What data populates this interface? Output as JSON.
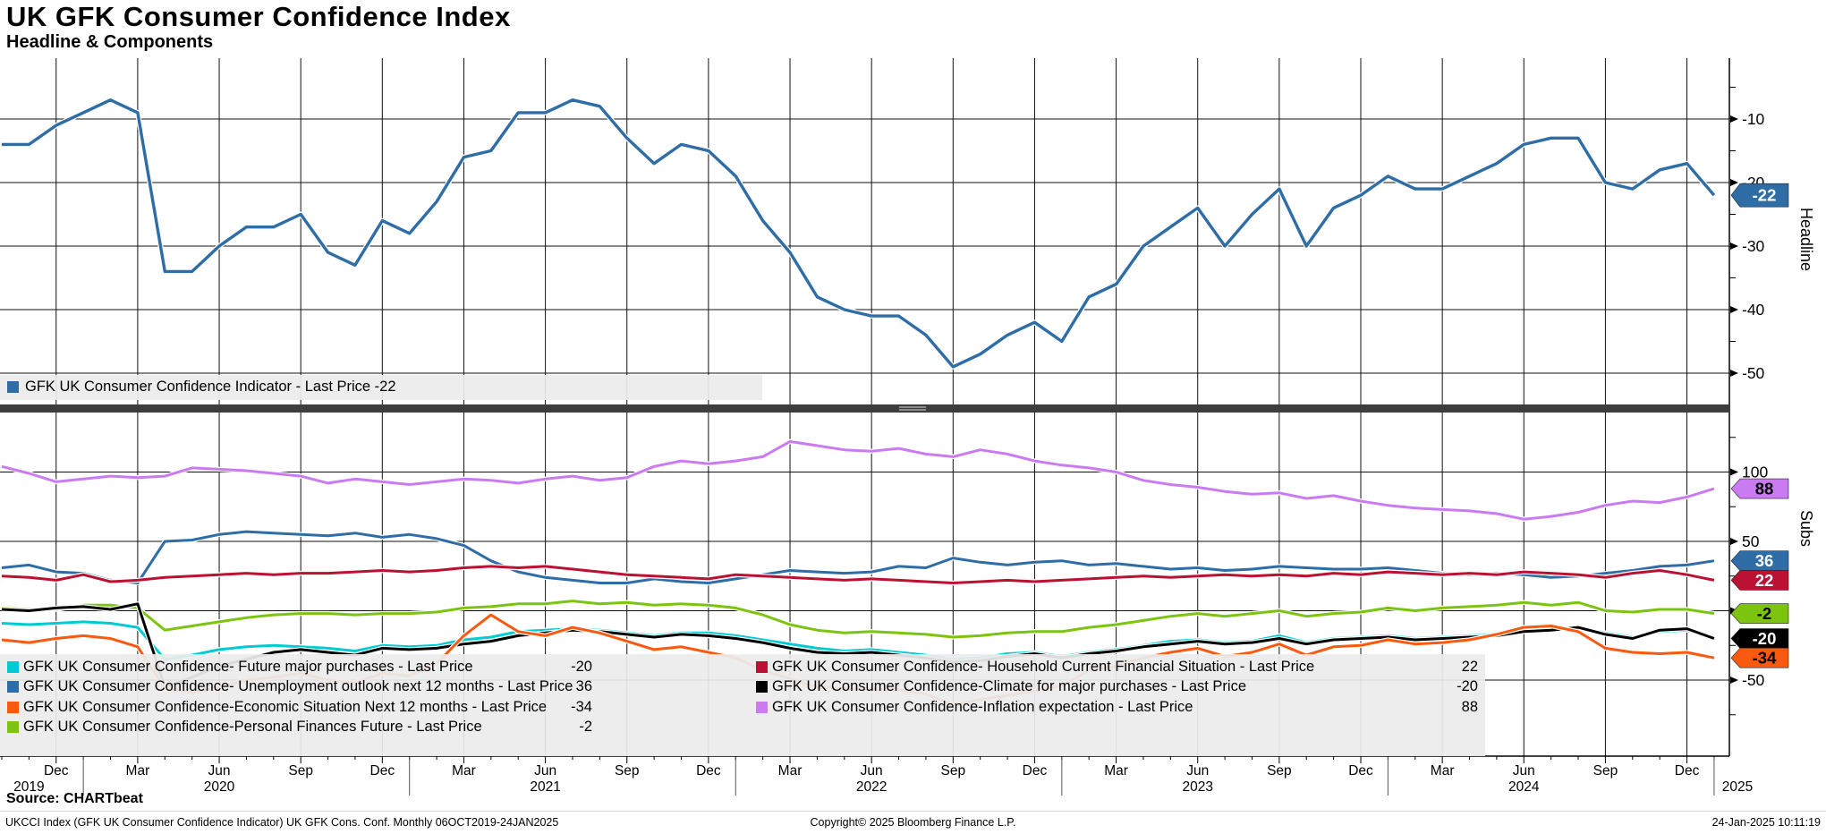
{
  "header": {
    "title": "UK GFK Consumer Confidence Index",
    "subtitle": "Headline & Components"
  },
  "top_panel": {
    "axis_label": "Headline",
    "legend": {
      "label": "GFK UK Consumer Confidence Indicator - Last Price -22",
      "color": "#2e6da6"
    },
    "y_ticks": [
      -10,
      -20,
      -30,
      -40,
      -50
    ],
    "minor_ticks": [
      -5,
      -15,
      -25,
      -35,
      -45
    ],
    "tag": {
      "display": "-22",
      "value": -22,
      "bg": "#2e6da6",
      "fg": "#ffffff"
    }
  },
  "bottom_panel": {
    "axis_label": "Subs",
    "y_ticks": [
      100,
      50,
      0,
      -50
    ],
    "minor_ticks": [
      125,
      75,
      25,
      -25,
      -75
    ],
    "legend_col1": [
      {
        "label": "GFK UK Consumer Confidence- Future major purchases - Last Price",
        "value": "-20",
        "color": "#00cbd2"
      },
      {
        "label": "GFK UK Consumer Confidence- Unemployment outlook next 12 months - Last Price",
        "value": "36",
        "color": "#2e6da6"
      },
      {
        "label": "GFK UK Consumer Confidence-Economic Situation Next 12 months - Last Price",
        "value": "-34",
        "color": "#fa5910"
      },
      {
        "label": "GFK UK Consumer Confidence-Personal Finances Future - Last Price",
        "value": "-2",
        "color": "#7cc40f"
      }
    ],
    "legend_col2": [
      {
        "label": "GFK UK Consumer Confidence- Household Current Financial Situation - Last Price",
        "value": "22",
        "color": "#bb1133"
      },
      {
        "label": "GFK UK Consumer Confidence-Climate for major purchases - Last Price",
        "value": "-20",
        "color": "#000000"
      },
      {
        "label": "GFK UK Consumer Confidence-Inflation expectation - Last Price",
        "value": "88",
        "color": "#cb7bf2"
      }
    ],
    "tags": [
      {
        "display": "88",
        "value": 88,
        "bg": "#cb7bf2",
        "fg": "#000000"
      },
      {
        "display": "36",
        "value": 36,
        "bg": "#2e6da6",
        "fg": "#ffffff"
      },
      {
        "display": "22",
        "value": 22,
        "bg": "#bb1133",
        "fg": "#ffffff"
      },
      {
        "display": "-2",
        "value": -2,
        "bg": "#7cc40f",
        "fg": "#000000"
      },
      {
        "display": "-20",
        "value": -20,
        "bg": "#000000",
        "fg": "#ffffff"
      },
      {
        "display": "-34",
        "value": -34,
        "bg": "#fa5910",
        "fg": "#000000"
      }
    ]
  },
  "x_axis": {
    "month_cycle": [
      "Dec",
      "Mar",
      "Jun",
      "Sep"
    ],
    "years": [
      "2019",
      "2020",
      "2021",
      "2022",
      "2023",
      "2024",
      "2025"
    ]
  },
  "footer": {
    "source": "Source: CHARTbeat",
    "disclaimer": "UKCCI Index (GFK UK Consumer Confidence Indicator) UK GFK Cons. Conf.  Monthly 06OCT2019-24JAN2025",
    "copyright": "Copyright© 2025 Bloomberg Finance L.P.",
    "timestamp": "24-Jan-2025 10:11:19"
  },
  "chart_data": {
    "type": "line",
    "frequency": "Monthly",
    "x_start": "Oct 2019",
    "x_end": "Jan 2025",
    "n_points": 64,
    "panels": [
      {
        "name": "Headline",
        "ylim": [
          -55,
          0
        ],
        "gridlines": [
          -10,
          -20,
          -30,
          -40,
          -50
        ],
        "series": [
          {
            "key": "headline",
            "name": "GFK UK Consumer Confidence Indicator",
            "color": "#2e6da6",
            "last_price": -22,
            "values": [
              -14,
              -14,
              -11,
              -9,
              -7,
              -9,
              -34,
              -34,
              -30,
              -27,
              -27,
              -25,
              -31,
              -33,
              -26,
              -28,
              -23,
              -16,
              -15,
              -9,
              -9,
              -7,
              -8,
              -13,
              -17,
              -14,
              -15,
              -19,
              -26,
              -31,
              -38,
              -40,
              -41,
              -41,
              -44,
              -49,
              -47,
              -44,
              -42,
              -45,
              -38,
              -36,
              -30,
              -27,
              -24,
              -30,
              -25,
              -21,
              -30,
              -24,
              -22,
              -19,
              -21,
              -21,
              -19,
              -17,
              -14,
              -13,
              -13,
              -20,
              -21,
              -18,
              -17,
              -22
            ]
          }
        ]
      },
      {
        "name": "Subs",
        "ylim": [
          -105,
          142
        ],
        "gridlines": [
          100,
          50,
          0,
          -50
        ],
        "series": [
          {
            "key": "inflation",
            "name": "GFK UK Consumer Confidence-Inflation expectation",
            "color": "#cb7bf2",
            "last_price": 88,
            "values": [
              104,
              99,
              93,
              95,
              97,
              96,
              97,
              103,
              102,
              101,
              99,
              97,
              92,
              95,
              93,
              91,
              93,
              95,
              94,
              92,
              95,
              97,
              94,
              96,
              104,
              108,
              106,
              108,
              111,
              122,
              119,
              116,
              115,
              117,
              113,
              111,
              116,
              113,
              108,
              105,
              103,
              100,
              94,
              91,
              89,
              86,
              84,
              85,
              81,
              83,
              79,
              76,
              74,
              73,
              72,
              70,
              66,
              68,
              71,
              76,
              79,
              78,
              82,
              88
            ]
          },
          {
            "key": "unemployment",
            "name": "GFK UK Consumer Confidence- Unemployment outlook next 12 months",
            "color": "#2e6da6",
            "last_price": 36,
            "values": [
              31,
              33,
              28,
              27,
              22,
              20,
              50,
              51,
              55,
              57,
              56,
              55,
              54,
              56,
              53,
              55,
              52,
              47,
              36,
              28,
              24,
              22,
              20,
              20,
              23,
              21,
              20,
              23,
              26,
              29,
              28,
              27,
              28,
              32,
              31,
              38,
              35,
              33,
              35,
              36,
              33,
              34,
              32,
              30,
              31,
              29,
              30,
              32,
              31,
              30,
              30,
              31,
              29,
              27,
              26,
              27,
              26,
              24,
              25,
              27,
              29,
              32,
              33,
              36
            ]
          },
          {
            "key": "household",
            "name": "GFK UK Consumer Confidence- Household Current Financial Situation",
            "color": "#bb1133",
            "last_price": 22,
            "values": [
              25,
              24,
              22,
              26,
              21,
              22,
              24,
              25,
              26,
              27,
              26,
              27,
              27,
              28,
              29,
              28,
              29,
              31,
              32,
              31,
              32,
              30,
              28,
              26,
              25,
              24,
              23,
              26,
              25,
              24,
              23,
              22,
              23,
              22,
              21,
              20,
              21,
              22,
              21,
              22,
              23,
              24,
              25,
              24,
              25,
              26,
              25,
              26,
              25,
              27,
              26,
              28,
              27,
              26,
              27,
              26,
              28,
              27,
              26,
              24,
              27,
              29,
              26,
              22
            ]
          },
          {
            "key": "personal",
            "name": "GFK UK Consumer Confidence-Personal Finances Future",
            "color": "#7cc40f",
            "last_price": -2,
            "values": [
              2,
              1,
              1,
              4,
              4,
              2,
              -14,
              -11,
              -8,
              -5,
              -3,
              -2,
              -2,
              -3,
              -2,
              -2,
              -1,
              2,
              3,
              5,
              5,
              7,
              5,
              6,
              4,
              5,
              4,
              2,
              -3,
              -10,
              -14,
              -16,
              -15,
              -16,
              -17,
              -19,
              -18,
              -16,
              -15,
              -15,
              -12,
              -10,
              -7,
              -4,
              -2,
              -4,
              -2,
              0,
              -4,
              -2,
              -1,
              2,
              0,
              2,
              3,
              4,
              6,
              4,
              6,
              0,
              -1,
              1,
              1,
              -2
            ]
          },
          {
            "key": "future_purchases",
            "name": "GFK UK Consumer Confidence- Future major purchases",
            "color": "#00cbd2",
            "last_price": -20,
            "values": [
              -9,
              -10,
              -9,
              -8,
              -9,
              -12,
              -35,
              -32,
              -28,
              -26,
              -25,
              -26,
              -27,
              -29,
              -25,
              -26,
              -25,
              -21,
              -19,
              -15,
              -14,
              -13,
              -14,
              -16,
              -18,
              -16,
              -16,
              -18,
              -21,
              -24,
              -27,
              -29,
              -28,
              -30,
              -32,
              -35,
              -34,
              -31,
              -30,
              -33,
              -30,
              -28,
              -25,
              -22,
              -21,
              -23,
              -22,
              -18,
              -23,
              -20,
              -19,
              -18,
              -20,
              -19,
              -18,
              -17,
              -14,
              -13,
              -12,
              -16,
              -19,
              -15,
              -14,
              -20
            ]
          },
          {
            "key": "climate",
            "name": "GFK UK Consumer Confidence-Climate for major purchases",
            "color": "#000000",
            "last_price": -20,
            "values": [
              1,
              0,
              2,
              3,
              1,
              5,
              -55,
              -48,
              -40,
              -35,
              -30,
              -28,
              -30,
              -32,
              -27,
              -28,
              -27,
              -24,
              -22,
              -18,
              -16,
              -14,
              -15,
              -17,
              -19,
              -17,
              -18,
              -20,
              -23,
              -27,
              -30,
              -31,
              -30,
              -32,
              -34,
              -37,
              -36,
              -33,
              -31,
              -34,
              -31,
              -29,
              -26,
              -24,
              -22,
              -24,
              -23,
              -20,
              -24,
              -21,
              -20,
              -19,
              -21,
              -20,
              -19,
              -18,
              -15,
              -14,
              -12,
              -17,
              -20,
              -14,
              -13,
              -20
            ]
          },
          {
            "key": "economic",
            "name": "GFK UK Consumer Confidence-Economic Situation Next 12 months",
            "color": "#fa5910",
            "last_price": -34,
            "values": [
              -21,
              -23,
              -20,
              -18,
              -20,
              -26,
              -56,
              -59,
              -55,
              -50,
              -48,
              -45,
              -50,
              -52,
              -45,
              -47,
              -38,
              -18,
              -3,
              -15,
              -18,
              -12,
              -16,
              -22,
              -28,
              -26,
              -30,
              -34,
              -43,
              -49,
              -55,
              -56,
              -57,
              -57,
              -60,
              -68,
              -64,
              -61,
              -58,
              -54,
              -43,
              -40,
              -34,
              -30,
              -27,
              -33,
              -30,
              -24,
              -32,
              -26,
              -25,
              -21,
              -24,
              -23,
              -21,
              -17,
              -12,
              -11,
              -15,
              -27,
              -30,
              -31,
              -30,
              -34
            ]
          }
        ]
      }
    ]
  }
}
